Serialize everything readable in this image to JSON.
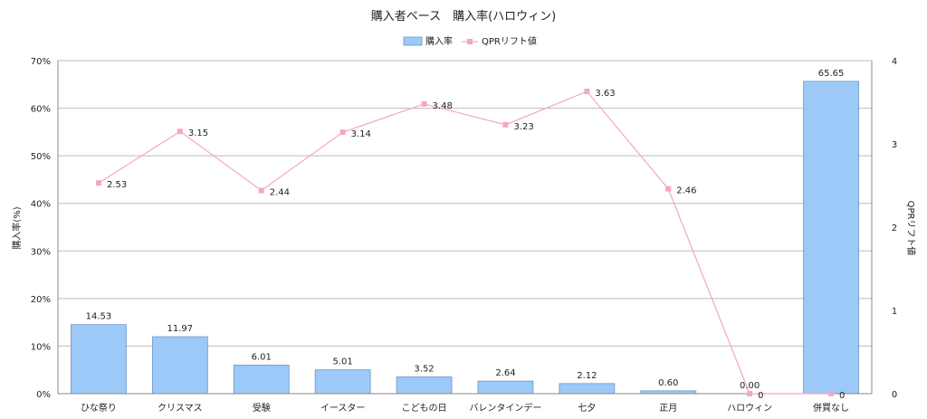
{
  "colors": {
    "bar_fill": "#9cc9f7",
    "bar_stroke": "#6f97c6",
    "line": "#f4a7c3",
    "marker": "#f4a7c3",
    "grid": "#bdbdbd",
    "axis": "#888888"
  },
  "chart_data": {
    "type": "bar",
    "title": "購入者ベース　購入率(ハロウィン)",
    "ylabel": "購入率(%)",
    "y2label": "QPRリフト値",
    "ylim": [
      0,
      70
    ],
    "y2lim": [
      0,
      4
    ],
    "yticks": [
      "0%",
      "10%",
      "20%",
      "30%",
      "40%",
      "50%",
      "60%",
      "70%"
    ],
    "y2ticks": [
      "0",
      "1",
      "2",
      "3",
      "4"
    ],
    "legend_position": "top-center",
    "grid": true,
    "categories": [
      "ひな祭り",
      "クリスマス",
      "受験",
      "イースター",
      "こどもの日",
      "バレンタインデー",
      "七夕",
      "正月",
      "ハロウィン",
      "併買なし"
    ],
    "series": [
      {
        "name": "購入率",
        "type": "bar",
        "axis": "left",
        "values": [
          14.53,
          11.97,
          6.01,
          5.01,
          3.52,
          2.64,
          2.12,
          0.6,
          0.0,
          65.65
        ],
        "labels": [
          "14.53",
          "11.97",
          "6.01",
          "5.01",
          "3.52",
          "2.64",
          "2.12",
          "0.60",
          "0.00",
          "65.65"
        ]
      },
      {
        "name": "QPRリフト値",
        "type": "line",
        "axis": "right",
        "values": [
          2.53,
          3.15,
          2.44,
          3.14,
          3.48,
          3.23,
          3.63,
          2.46,
          0,
          0
        ],
        "labels": [
          "2.53",
          "3.15",
          "2.44",
          "3.14",
          "3.48",
          "3.23",
          "3.63",
          "2.46",
          "0",
          "0"
        ]
      }
    ]
  }
}
